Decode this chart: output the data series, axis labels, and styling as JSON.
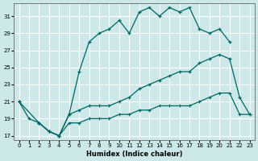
{
  "xlabel": "Humidex (Indice chaleur)",
  "bg_color": "#cce8e8",
  "grid_color": "#ffffff",
  "line_color": "#006666",
  "xlim": [
    -0.5,
    23.5
  ],
  "ylim": [
    16.5,
    32.5
  ],
  "yticks": [
    17,
    19,
    21,
    23,
    25,
    27,
    29,
    31
  ],
  "xticks": [
    0,
    1,
    2,
    3,
    4,
    5,
    6,
    7,
    8,
    9,
    10,
    11,
    12,
    13,
    14,
    15,
    16,
    17,
    18,
    19,
    20,
    21,
    22,
    23
  ],
  "line1_x": [
    0,
    1,
    2,
    3,
    4,
    5,
    6,
    7,
    8,
    9,
    10,
    11,
    12,
    13,
    14,
    15,
    16,
    17,
    18,
    19,
    20,
    21
  ],
  "line1_y": [
    21.0,
    19.0,
    18.5,
    17.5,
    17.0,
    19.5,
    24.5,
    28.0,
    29.0,
    29.5,
    30.5,
    29.0,
    31.5,
    32.0,
    31.0,
    32.0,
    31.5,
    32.0,
    29.5,
    29.0,
    29.5,
    28.0
  ],
  "line2_x": [
    0,
    2,
    3,
    4,
    5,
    6,
    7,
    8,
    9,
    10,
    11,
    12,
    13,
    14,
    15,
    16,
    17,
    18,
    19,
    20,
    21,
    22,
    23
  ],
  "line2_y": [
    21.0,
    18.5,
    17.5,
    17.0,
    19.5,
    20.0,
    20.5,
    20.5,
    20.5,
    21.0,
    21.5,
    22.5,
    23.0,
    23.5,
    24.0,
    24.5,
    24.5,
    25.5,
    26.0,
    26.5,
    26.0,
    21.5,
    19.5
  ],
  "line3_x": [
    2,
    3,
    4,
    5,
    6,
    7,
    8,
    9,
    10,
    11,
    12,
    13,
    14,
    15,
    16,
    17,
    18,
    19,
    20,
    21,
    22,
    23
  ],
  "line3_y": [
    18.5,
    17.5,
    17.0,
    18.5,
    18.5,
    19.0,
    19.0,
    19.0,
    19.5,
    19.5,
    20.0,
    20.0,
    20.5,
    20.5,
    20.5,
    20.5,
    21.0,
    21.5,
    22.0,
    22.0,
    19.5,
    19.5
  ]
}
